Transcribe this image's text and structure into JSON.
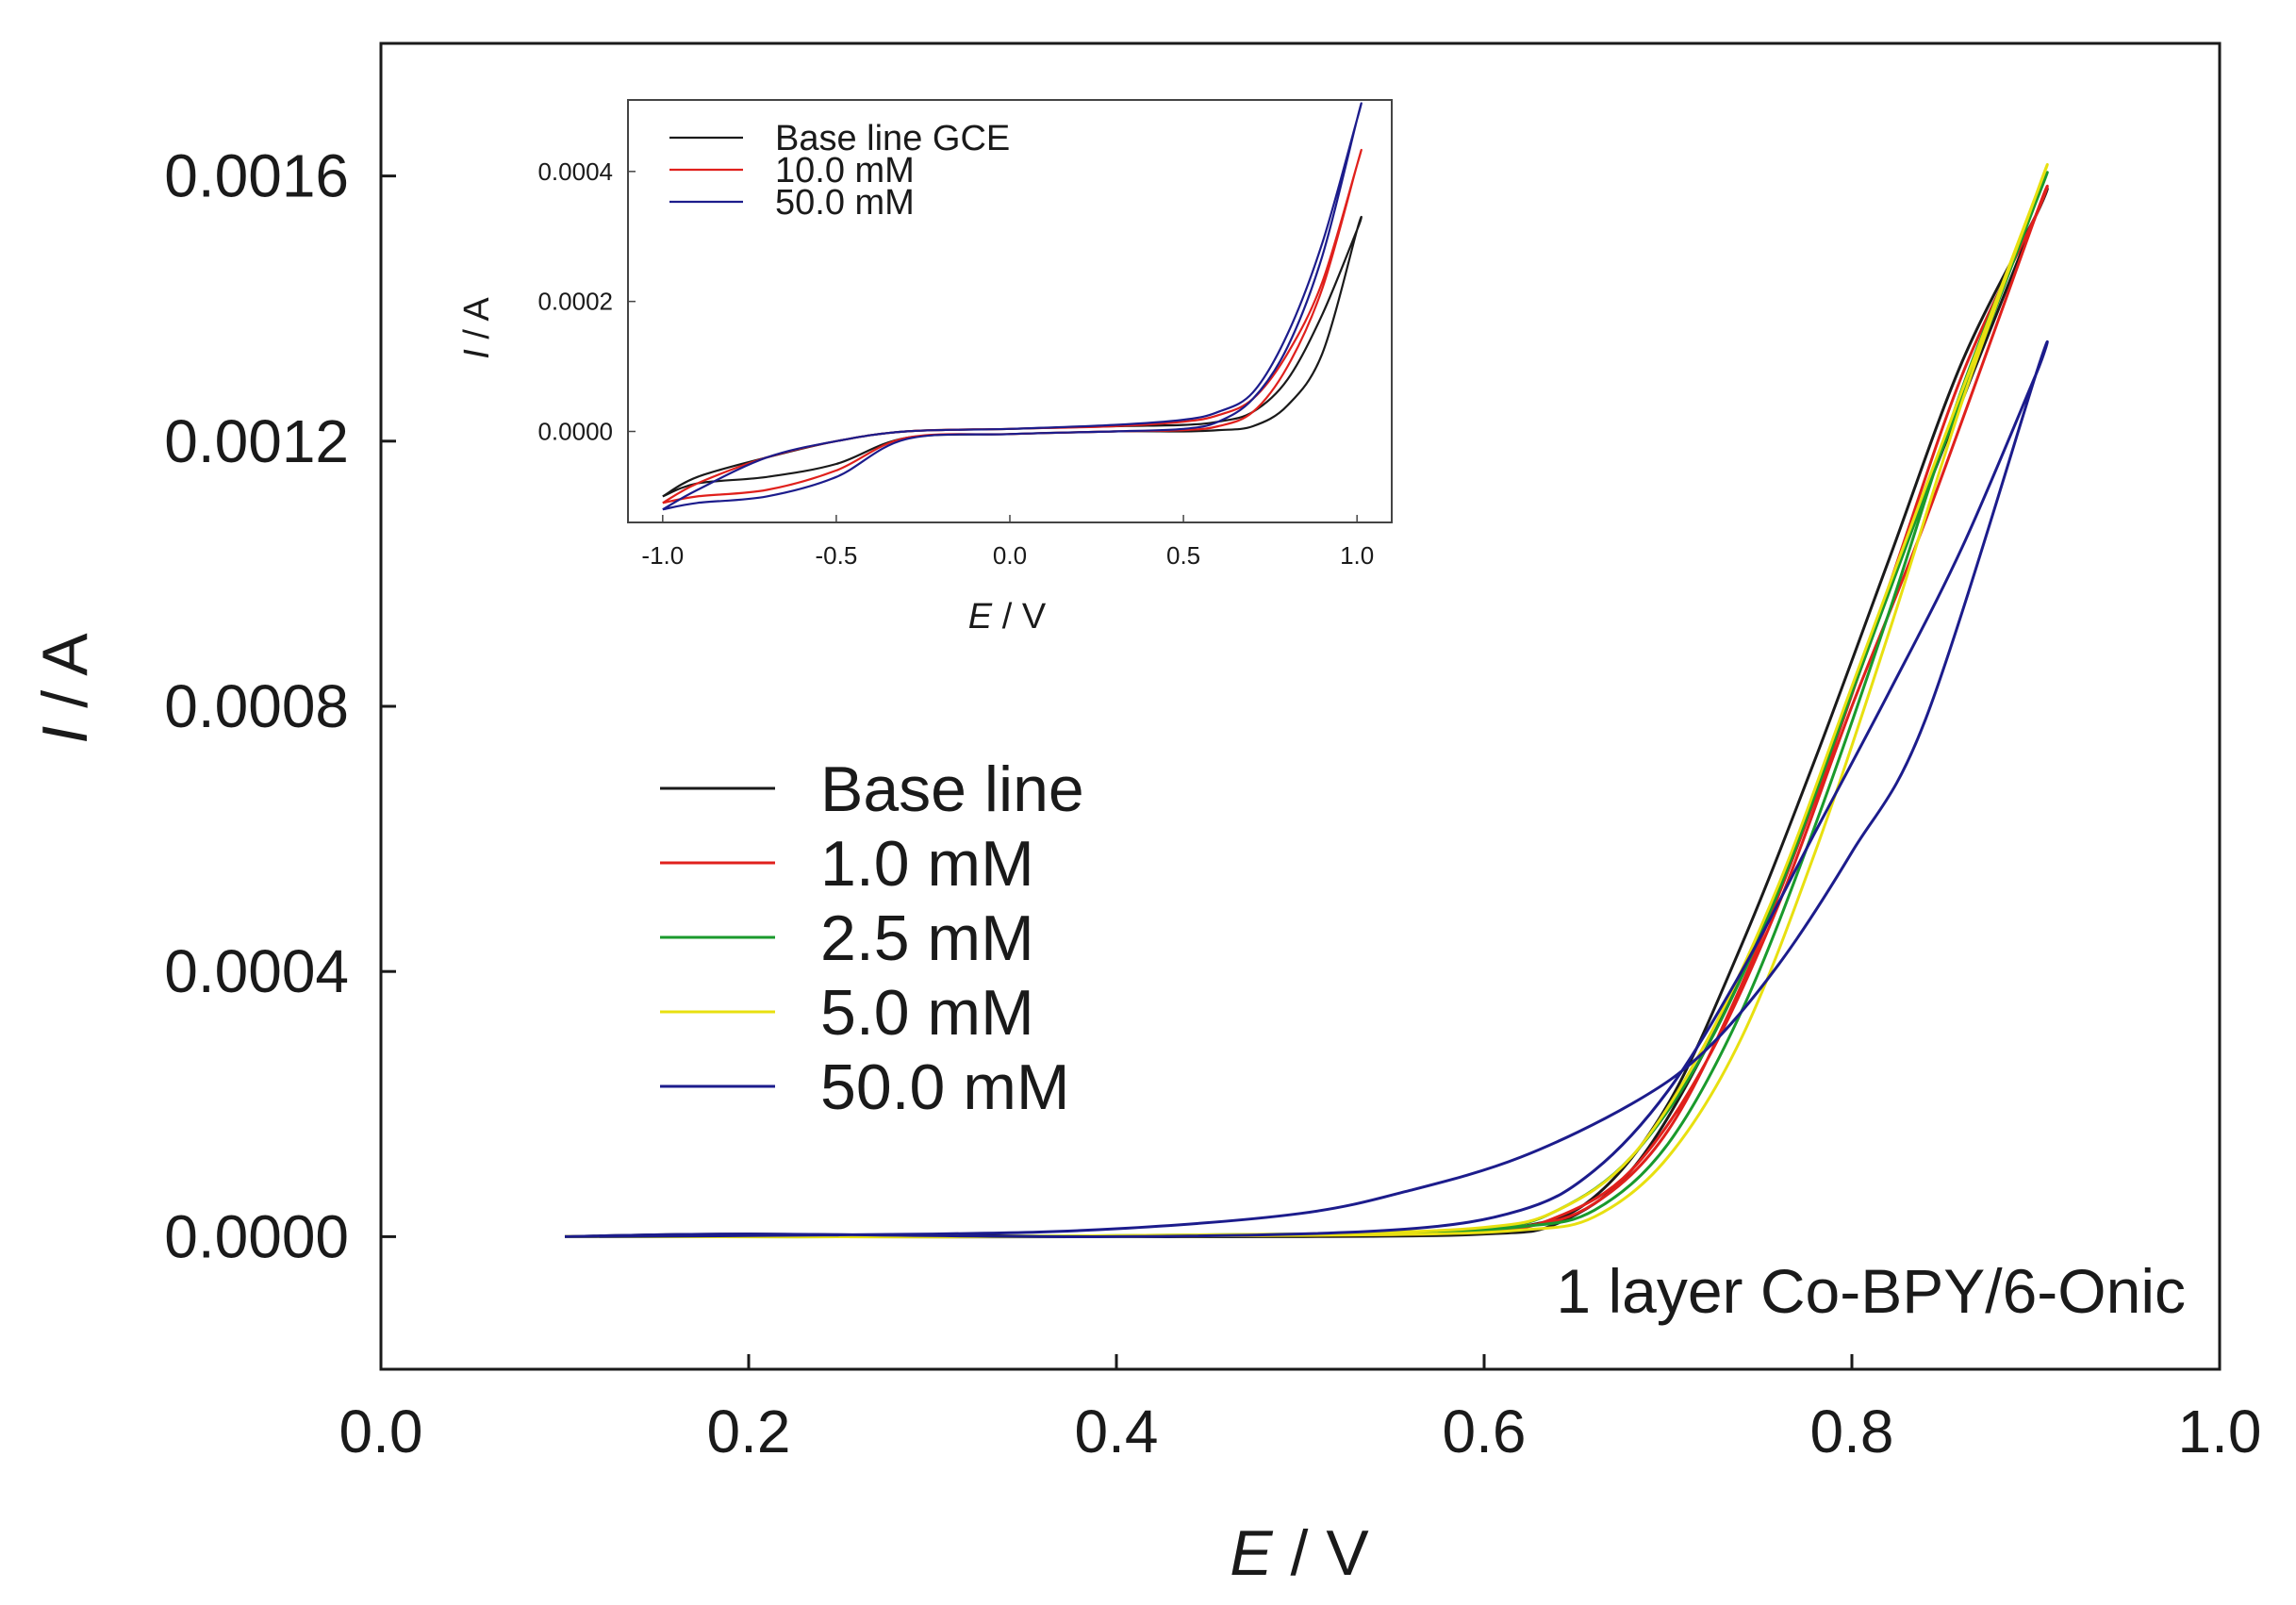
{
  "chart_data": [
    {
      "id": "main",
      "type": "line",
      "title": "",
      "xlabel_italic": "E",
      "xlabel_rest": " / V",
      "ylabel_italic": "I",
      "ylabel_rest": " / A",
      "xlim": [
        0.0,
        1.0
      ],
      "ylim": [
        -0.0002,
        0.0018
      ],
      "xticks": [
        "0.0",
        "0.2",
        "0.4",
        "0.6",
        "0.8",
        "1.0"
      ],
      "yticks": [
        "0.0000",
        "0.0004",
        "0.0008",
        "0.0012",
        "0.0016"
      ],
      "annotation": "1 layer Co-BPY/6-Onic",
      "series": [
        {
          "name": "Base line",
          "color": "#1a1a1a",
          "forward_x": [
            0.1,
            0.3,
            0.5,
            0.6,
            0.64,
            0.68,
            0.72,
            0.76,
            0.8,
            0.84,
            0.9
          ],
          "forward_y": [
            0.0,
            0.0,
            0.0,
            4e-06,
            2e-05,
            0.0001,
            0.00028,
            0.00052,
            0.00082,
            0.00112,
            0.00154
          ],
          "reverse_x": [
            0.9,
            0.86,
            0.82,
            0.78,
            0.74,
            0.7,
            0.66,
            0.62,
            0.55,
            0.4,
            0.2,
            0.1
          ],
          "reverse_y": [
            0.00154,
            0.00132,
            0.00102,
            0.00072,
            0.00044,
            0.0002,
            6e-05,
            1.5e-05,
            4e-06,
            0.0,
            4e-06,
            0.0
          ]
        },
        {
          "name": "1.0 mM",
          "color": "#e0201c",
          "forward_x": [
            0.1,
            0.3,
            0.5,
            0.6,
            0.64,
            0.68,
            0.72,
            0.76,
            0.8,
            0.84,
            0.9
          ],
          "forward_y": [
            0.0,
            0.0,
            2e-06,
            8e-06,
            3e-05,
            0.0001,
            0.00026,
            0.0005,
            0.0008,
            0.00108,
            0.00154
          ],
          "reverse_x": [
            0.9,
            0.86,
            0.82,
            0.78,
            0.74,
            0.7,
            0.66,
            0.62,
            0.55,
            0.4,
            0.2,
            0.1
          ],
          "reverse_y": [
            0.00154,
            0.0013,
            0.00098,
            0.00066,
            0.00038,
            0.00016,
            5e-05,
            1.5e-05,
            5e-06,
            0.0,
            0.0,
            0.0
          ]
        },
        {
          "name": "2.5 mM",
          "color": "#1a9a2c",
          "forward_x": [
            0.1,
            0.3,
            0.5,
            0.6,
            0.64,
            0.68,
            0.72,
            0.76,
            0.8,
            0.84,
            0.9
          ],
          "forward_y": [
            0.0,
            0.0,
            4e-06,
            1.2e-05,
            4e-05,
            0.00012,
            0.00028,
            0.00052,
            0.00082,
            0.00112,
            0.00156
          ],
          "reverse_x": [
            0.9,
            0.86,
            0.82,
            0.78,
            0.74,
            0.7,
            0.66,
            0.62,
            0.55,
            0.4,
            0.2,
            0.1
          ],
          "reverse_y": [
            0.00156,
            0.00128,
            0.00094,
            0.00062,
            0.00034,
            0.00014,
            4e-05,
            1.5e-05,
            5e-06,
            0.0,
            0.0,
            0.0
          ]
        },
        {
          "name": "5.0 mM",
          "color": "#e8e010",
          "forward_x": [
            0.1,
            0.3,
            0.5,
            0.6,
            0.64,
            0.68,
            0.72,
            0.76,
            0.8,
            0.84,
            0.9
          ],
          "forward_y": [
            0.0,
            0.0,
            4e-06,
            1.4e-05,
            4e-05,
            0.00012,
            0.00029,
            0.00053,
            0.00083,
            0.00113,
            0.00157
          ],
          "reverse_x": [
            0.9,
            0.86,
            0.82,
            0.78,
            0.74,
            0.7,
            0.66,
            0.62,
            0.55,
            0.4,
            0.2,
            0.1
          ],
          "reverse_y": [
            0.00157,
            0.00126,
            0.00091,
            0.00058,
            0.0003,
            0.00012,
            3e-05,
            1e-05,
            3e-06,
            0.0,
            0.0,
            0.0
          ]
        },
        {
          "name": "50.0 mM",
          "color": "#1c1c8c",
          "forward_x": [
            0.1,
            0.3,
            0.4,
            0.5,
            0.56,
            0.62,
            0.68,
            0.72,
            0.76,
            0.8,
            0.84,
            0.9
          ],
          "forward_y": [
            0.0,
            4e-06,
            1.2e-05,
            3.5e-05,
            7e-05,
            0.00012,
            0.0002,
            0.00028,
            0.00041,
            0.00058,
            0.00078,
            0.0013
          ],
          "reverse_x": [
            0.9,
            0.86,
            0.82,
            0.78,
            0.74,
            0.7,
            0.66,
            0.62,
            0.55,
            0.4,
            0.2,
            0.1
          ],
          "reverse_y": [
            0.0013,
            0.00104,
            0.00082,
            0.00061,
            0.0004,
            0.00022,
            0.0001,
            4e-05,
            1e-05,
            0.0,
            4e-06,
            0.0
          ]
        }
      ]
    },
    {
      "id": "inset",
      "type": "line",
      "title": "",
      "xlabel_italic": "E",
      "xlabel_rest": " / V",
      "ylabel_italic": "I",
      "ylabel_rest": " / A",
      "xlim": [
        -1.1,
        1.1
      ],
      "ylim": [
        -0.00014,
        0.00051
      ],
      "xticks": [
        "-1.0",
        "-0.5",
        "0.0",
        "0.5",
        "1.0"
      ],
      "yticks": [
        "0.0000",
        "0.0002",
        "0.0004"
      ],
      "series": [
        {
          "name": "Base line GCE",
          "color": "#1a1a1a",
          "forward_x": [
            -1.0,
            -0.9,
            -0.7,
            -0.5,
            -0.3,
            0.0,
            0.3,
            0.5,
            0.6,
            0.7,
            0.8,
            0.9,
            1.0
          ],
          "forward_y": [
            -0.0001,
            -8e-05,
            -7e-05,
            -5e-05,
            -1e-05,
            -4e-06,
            0.0,
            0.0,
            2e-06,
            8e-06,
            4e-05,
            0.00012,
            0.00031
          ],
          "reverse_x": [
            1.0,
            0.9,
            0.8,
            0.7,
            0.6,
            0.5,
            0.3,
            0.0,
            -0.3,
            -0.5,
            -0.7,
            -0.9,
            -1.0
          ],
          "reverse_y": [
            0.00031,
            0.00018,
            8e-05,
            3e-05,
            1.5e-05,
            1e-05,
            8e-06,
            4e-06,
            0.0,
            -1.5e-05,
            -4e-05,
            -7e-05,
            -0.0001
          ]
        },
        {
          "name": "10.0 mM",
          "color": "#e0201c",
          "forward_x": [
            -1.0,
            -0.9,
            -0.7,
            -0.5,
            -0.3,
            0.0,
            0.3,
            0.5,
            0.6,
            0.7,
            0.8,
            0.9,
            1.0
          ],
          "forward_y": [
            -0.00011,
            -0.0001,
            -9e-05,
            -6e-05,
            -1e-05,
            -4e-06,
            0.0,
            2e-06,
            8e-06,
            3e-05,
            0.0001,
            0.00022,
            0.00041
          ],
          "reverse_x": [
            1.0,
            0.9,
            0.8,
            0.7,
            0.6,
            0.5,
            0.3,
            0.0,
            -0.3,
            -0.5,
            -0.7,
            -0.9,
            -1.0
          ],
          "reverse_y": [
            0.00041,
            0.00023,
            0.00012,
            5e-05,
            2.5e-05,
            1.5e-05,
            8e-06,
            4e-06,
            0.0,
            -1.5e-05,
            -4e-05,
            -8e-05,
            -0.00011
          ]
        },
        {
          "name": "50.0 mM",
          "color": "#1c1c8c",
          "forward_x": [
            -1.0,
            -0.9,
            -0.7,
            -0.5,
            -0.3,
            0.0,
            0.3,
            0.5,
            0.6,
            0.7,
            0.8,
            0.9,
            1.0
          ],
          "forward_y": [
            -0.00012,
            -0.00011,
            -0.0001,
            -7e-05,
            -1.2e-05,
            -4e-06,
            0.0,
            4e-06,
            1.5e-05,
            5e-05,
            0.00013,
            0.00027,
            0.00048
          ],
          "reverse_x": [
            1.0,
            0.9,
            0.8,
            0.7,
            0.6,
            0.5,
            0.3,
            0.0,
            -0.3,
            -0.5,
            -0.7,
            -0.9,
            -1.0
          ],
          "reverse_y": [
            0.00048,
            0.00029,
            0.00015,
            6e-05,
            3e-05,
            1.8e-05,
            1e-05,
            4e-06,
            0.0,
            -1.5e-05,
            -4e-05,
            -9e-05,
            -0.00012
          ]
        }
      ]
    }
  ]
}
